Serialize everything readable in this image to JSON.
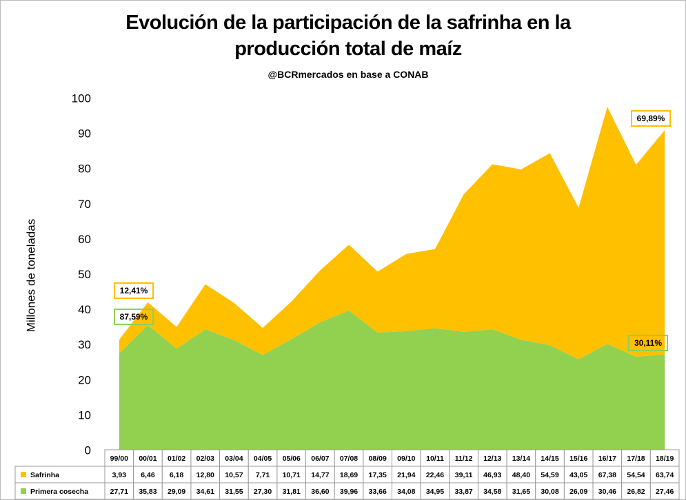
{
  "chart_data": {
    "type": "stacked_area",
    "title": "Evolución de la participación de la safrinha en la producción total de maíz",
    "subtitle": "@BCRmercados en base a CONAB",
    "y_label": "Millones de toneladas",
    "categories": [
      "99/00",
      "00/01",
      "01/02",
      "02/03",
      "03/04",
      "04/05",
      "05/06",
      "06/07",
      "07/08",
      "08/09",
      "09/10",
      "10/11",
      "11/12",
      "12/13",
      "13/14",
      "14/15",
      "15/16",
      "16/17",
      "17/18",
      "18/19"
    ],
    "series": [
      {
        "name": "Safrinha",
        "color": "#FFC000",
        "values": [
          3.93,
          6.46,
          6.18,
          12.8,
          10.57,
          7.71,
          10.71,
          14.77,
          18.69,
          17.35,
          21.94,
          22.46,
          39.11,
          46.93,
          48.4,
          54.59,
          43.05,
          67.38,
          54.54,
          63.74
        ],
        "value_labels": [
          "3,93",
          "6,46",
          "6,18",
          "12,80",
          "10,57",
          "7,71",
          "10,71",
          "14,77",
          "18,69",
          "17,35",
          "21,94",
          "22,46",
          "39,11",
          "46,93",
          "48,40",
          "54,59",
          "43,05",
          "67,38",
          "54,54",
          "63,74"
        ]
      },
      {
        "name": "Primera cosecha",
        "color": "#92D050",
        "values": [
          27.71,
          35.83,
          29.09,
          34.61,
          31.55,
          27.3,
          31.81,
          36.6,
          39.96,
          33.66,
          34.08,
          34.95,
          33.87,
          34.58,
          31.65,
          30.08,
          26.09,
          30.46,
          26.82,
          27.46
        ],
        "value_labels": [
          "27,71",
          "35,83",
          "29,09",
          "34,61",
          "31,55",
          "27,30",
          "31,81",
          "36,60",
          "39,96",
          "33,66",
          "34,08",
          "34,95",
          "33,87",
          "34,58",
          "31,65",
          "30,08",
          "26,09",
          "30,46",
          "26,82",
          "27,46"
        ]
      }
    ],
    "annotations": [
      {
        "text": "12,41%",
        "color": "#FFC000"
      },
      {
        "text": "87,59%",
        "color": "#92D050"
      },
      {
        "text": "69,89%",
        "color": "#FFC000"
      },
      {
        "text": "30,11%",
        "color": "#92D050"
      }
    ],
    "ylim": [
      0,
      100
    ],
    "yticks": [
      0,
      10,
      20,
      30,
      40,
      50,
      60,
      70,
      80,
      90,
      100
    ],
    "grid": false
  }
}
